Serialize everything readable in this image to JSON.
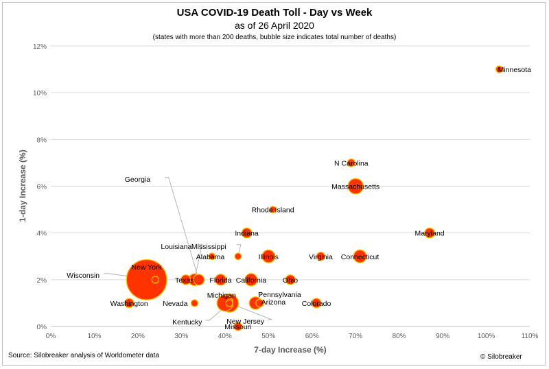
{
  "chart_data": {
    "type": "scatter",
    "title": "USA COVID-19 Death Toll - Day vs Week",
    "subtitle": "as of 26 April 2020",
    "note": "(states with more than 200 deaths, bubble size indicates total number of deaths)",
    "xlabel": "7-day Increase (%)",
    "ylabel": "1-day Increase (%)",
    "xlim": [
      0,
      110
    ],
    "ylim": [
      0,
      12
    ],
    "x_ticks": [
      "0%",
      "10%",
      "20%",
      "30%",
      "40%",
      "50%",
      "60%",
      "70%",
      "80%",
      "90%",
      "100%",
      "110%"
    ],
    "y_ticks": [
      "0%",
      "2%",
      "4%",
      "6%",
      "8%",
      "10%",
      "12%"
    ],
    "grid": "horizontal",
    "legend": "none",
    "fill_color": "#ff3300",
    "edge_color": "#ffc000",
    "label_color": "#000000",
    "leader_color": "#a6a6a6",
    "points": [
      {
        "label": "Minnesota",
        "x": 103,
        "y": 11,
        "size": 1.0
      },
      {
        "label": "N Carolina",
        "x": 69,
        "y": 7,
        "size": 1.3
      },
      {
        "label": "Massachusetts",
        "x": 70,
        "y": 6,
        "size": 5.0
      },
      {
        "label": "Rhode Island",
        "x": 51,
        "y": 5,
        "size": 0.9
      },
      {
        "label": "Maryland",
        "x": 87,
        "y": 4,
        "size": 2.1
      },
      {
        "label": "Indiana",
        "x": 45,
        "y": 4,
        "size": 2.1
      },
      {
        "label": "Mississippi",
        "x": 43,
        "y": 3,
        "size": 0.9
      },
      {
        "label": "Alabama",
        "x": 37,
        "y": 3,
        "size": 0.9
      },
      {
        "label": "Illinois",
        "x": 50,
        "y": 3,
        "size": 3.5
      },
      {
        "label": "Virginia",
        "x": 62,
        "y": 3,
        "size": 1.5
      },
      {
        "label": "Connecticut",
        "x": 71,
        "y": 3,
        "size": 3.5
      },
      {
        "label": "Georgia",
        "x": 34,
        "y": 2,
        "size": 2.5
      },
      {
        "label": "Louisiana",
        "x": 33,
        "y": 2,
        "size": 3.0
      },
      {
        "label": "New York",
        "x": 22,
        "y": 2,
        "size": 22.0
      },
      {
        "label": "Wisconsin",
        "x": 24,
        "y": 2,
        "size": 1.0
      },
      {
        "label": "Texas",
        "x": 31,
        "y": 2,
        "size": 2.0
      },
      {
        "label": "Florida",
        "x": 39,
        "y": 2,
        "size": 2.6
      },
      {
        "label": "California",
        "x": 46,
        "y": 2,
        "size": 3.3
      },
      {
        "label": "Ohio",
        "x": 55,
        "y": 2,
        "size": 2.0
      },
      {
        "label": "Washington",
        "x": 18,
        "y": 1,
        "size": 1.8
      },
      {
        "label": "Michigan",
        "x": 40,
        "y": 1,
        "size": 5.5
      },
      {
        "label": "Kentucky",
        "x": 41,
        "y": 1,
        "size": 1.0
      },
      {
        "label": "Nevada",
        "x": 33,
        "y": 1,
        "size": 1.0
      },
      {
        "label": "New Jersey",
        "x": 41,
        "y": 1,
        "size": 7.0
      },
      {
        "label": "Pennsylvania",
        "x": 47,
        "y": 1,
        "size": 3.3
      },
      {
        "label": "Arizona",
        "x": 48,
        "y": 1,
        "size": 1.3
      },
      {
        "label": "Colorado",
        "x": 61,
        "y": 1,
        "size": 1.9
      },
      {
        "label": "Missouri",
        "x": 43,
        "y": 0,
        "size": 1.4
      }
    ]
  },
  "footer": {
    "source": "Source: Silobreaker analysis of Worldometer data",
    "credit": "© Silobreaker"
  }
}
